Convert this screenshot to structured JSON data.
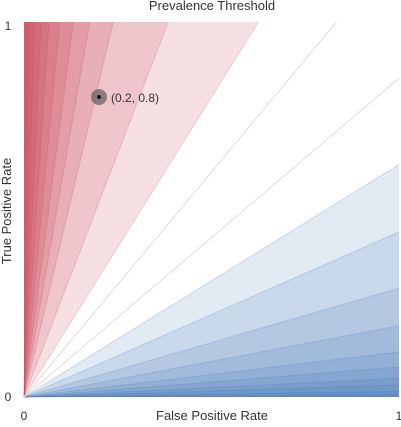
{
  "chart_data": {
    "type": "area",
    "title": "Prevalence Threshold",
    "xlabel": "False Positive Rate",
    "ylabel": "True Positive Rate",
    "xlim": [
      0,
      1
    ],
    "ylim": [
      0,
      1
    ],
    "x_ticks": [
      "0",
      "1"
    ],
    "y_ticks": [
      "0",
      "1"
    ],
    "red_slopes": [
      1.6,
      2.6,
      4.2,
      5.7,
      7.6,
      10.5,
      15,
      22,
      37,
      80
    ],
    "blue_slopes": [
      0.62,
      0.44,
      0.29,
      0.19,
      0.12,
      0.08,
      0.05,
      0.032,
      0.015,
      0.006
    ],
    "neutral_line_slopes": [
      0.85,
      1.2
    ],
    "colors": {
      "red": "#c8404f",
      "blue": "#3f72b8",
      "neutral_line": "#dddddd",
      "point": "#555555"
    },
    "point": {
      "x": 0.2,
      "y": 0.8,
      "label": "(0.2, 0.8)"
    }
  }
}
